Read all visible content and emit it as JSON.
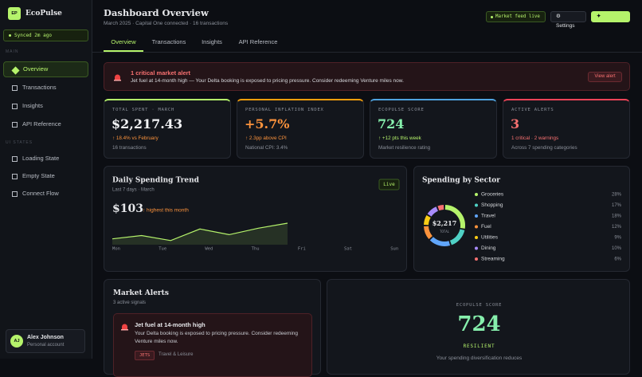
{
  "sidebar": {
    "logo": "EP",
    "brand": "EcoPulse",
    "sync": "Synced 2m ago",
    "sections": [
      {
        "label": "MAIN",
        "items": [
          "Overview",
          "Transactions",
          "Insights",
          "API Reference"
        ]
      },
      {
        "label": "UI STATES",
        "items": [
          "Loading State",
          "Empty State",
          "Connect Flow"
        ]
      }
    ],
    "user": {
      "initials": "AJ",
      "name": "Alex Johnson",
      "role": "Personal account"
    }
  },
  "header": {
    "title": "Dashboard Overview",
    "subtitle": "March 2025 · Capital One connected · 16 transactions",
    "status": "Market feed live",
    "buttons": [
      "⚙ Settings",
      "✦ Reconnect"
    ]
  },
  "tabs": [
    "Overview",
    "Transactions",
    "Insights",
    "API Reference"
  ],
  "alert_banner": {
    "title": "1 critical market alert",
    "text": "Jet fuel at 14-month high — Your Delta booking is exposed to pricing pressure. Consider redeeming Venture miles now.",
    "action": "View alert"
  },
  "kpis": [
    {
      "label": "TOTAL SPENT · MARCH",
      "value": "$2,217.43",
      "delta": "↑ 18.4% vs February",
      "note": "16 transactions"
    },
    {
      "label": "PERSONAL INFLATION INDEX",
      "value": "+5.7%",
      "delta": "↑ 2.3pp above CPI",
      "note": "National CPI: 3.4%"
    },
    {
      "label": "ECOPULSE SCORE",
      "value": "724",
      "delta": "↑ +12 pts this week",
      "note": "Market resilience rating"
    },
    {
      "label": "ACTIVE ALERTS",
      "value": "3",
      "delta": "1 critical · 2 warnings",
      "note": "Across 7 spending categories"
    }
  ],
  "chart_data": [
    {
      "type": "line",
      "title": "Daily Spending Trend",
      "subtitle": "Last 7 days · March",
      "badge": "Live",
      "annotations": [
        "$103",
        "↑ highest this month"
      ],
      "categories": [
        "Mon",
        "Tue",
        "Wed",
        "Thu",
        "Fri",
        "Sat",
        "Sun"
      ],
      "values": [
        28,
        44,
        20,
        75,
        48,
        79,
        103
      ],
      "color": "#b5f36b"
    },
    {
      "type": "pie",
      "title": "Spending by Sector",
      "center_label": "$2,217",
      "center_sublabel": "TOTAL",
      "categories": [
        "Groceries",
        "Shopping",
        "Travel",
        "Fuel",
        "Utilities",
        "Dining",
        "Streaming"
      ],
      "values": [
        28,
        17,
        18,
        12,
        9,
        10,
        6
      ],
      "value_labels": [
        "28%",
        "17%",
        "18%",
        "12%",
        "9%",
        "10%",
        "6%"
      ],
      "colors": [
        "#b5f36b",
        "#4fd1c5",
        "#60a5fa",
        "#fb923c",
        "#facc15",
        "#a78bfa",
        "#f87171"
      ]
    }
  ],
  "market_alerts": {
    "title": "Market Alerts",
    "subtitle": "3 active signals",
    "items": [
      {
        "title": "Jet fuel at 14-month high",
        "text": "Your Delta booking is exposed to pricing pressure. Consider redeeming Venture miles now.",
        "tag": "JETS",
        "category": "Travel & Leisure"
      }
    ]
  },
  "score": {
    "label": "ECOPULSE SCORE",
    "value": "724",
    "rating": "RESILIENT",
    "text": "Your spending diversification reduces"
  }
}
